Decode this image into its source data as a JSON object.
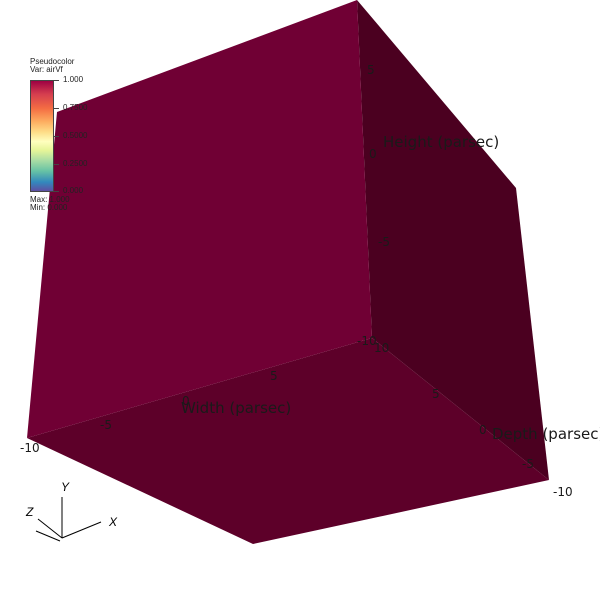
{
  "legend": {
    "plot_type": "Pseudocolor",
    "var_label": "Var: airVf",
    "ticks": [
      "1.000",
      "0.7500",
      "0.5000",
      "0.2500",
      "0.000"
    ],
    "max_label": "Max:  1.000",
    "min_label": "Min:  0.000",
    "colormap": "Spectral (red-yellow-green-blue)"
  },
  "axes": {
    "width_title": "Width (parsec)",
    "height_title": "Height (parsec)",
    "depth_title": "Depth (parsec)",
    "width_ticks": [
      "-10",
      "-5",
      "0",
      "5",
      "10"
    ],
    "height_ticks": [
      "5",
      "0",
      "-5",
      "-10"
    ],
    "depth_ticks": [
      "5",
      "0",
      "-5",
      "-10"
    ]
  },
  "triad": {
    "x": "X",
    "y": "Y",
    "z": "Z"
  },
  "colors": {
    "front_face": "#700034",
    "right_face": "#4b0020",
    "bottom_face": "#5d0029",
    "background": "#ffffff"
  }
}
